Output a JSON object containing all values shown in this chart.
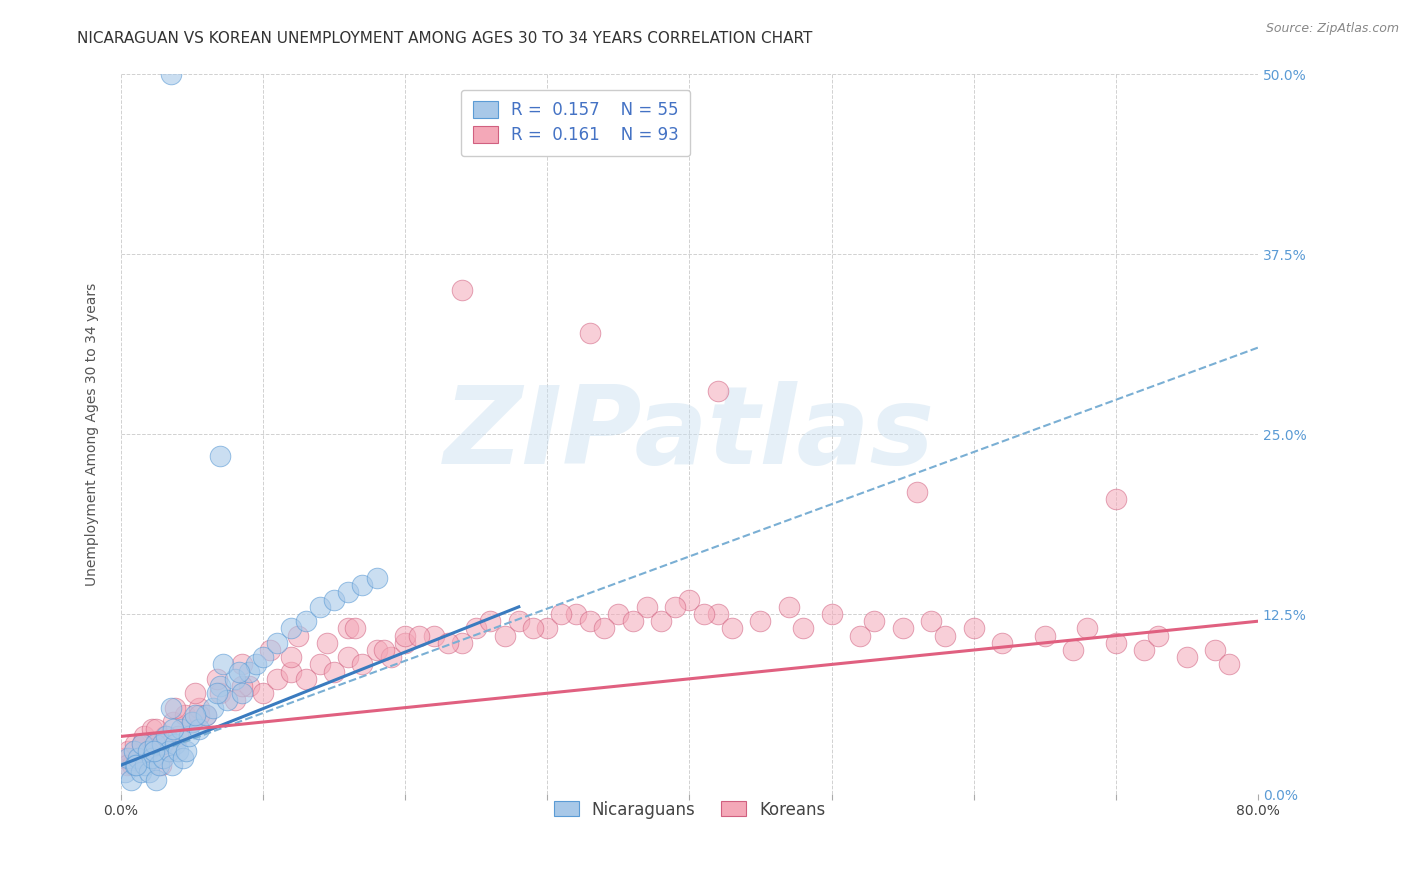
{
  "title": "NICARAGUAN VS KOREAN UNEMPLOYMENT AMONG AGES 30 TO 34 YEARS CORRELATION CHART",
  "source": "Source: ZipAtlas.com",
  "ylabel": "Unemployment Among Ages 30 to 34 years",
  "ytick_values": [
    0.0,
    12.5,
    25.0,
    37.5,
    50.0
  ],
  "xtick_values": [
    0.0,
    10.0,
    20.0,
    30.0,
    40.0,
    50.0,
    60.0,
    70.0,
    80.0
  ],
  "xlim": [
    0.0,
    80.0
  ],
  "ylim": [
    0.0,
    50.0
  ],
  "blue_scatter_color": "#a8c8e8",
  "blue_edge_color": "#5b9bd5",
  "pink_scatter_color": "#f4a8b8",
  "pink_edge_color": "#d06080",
  "blue_solid_color": "#3a7bbf",
  "pink_solid_color": "#e06080",
  "blue_dash_color": "#7aafd4",
  "watermark_text": "ZIPatlas",
  "title_fontsize": 11,
  "source_fontsize": 9,
  "axis_label_fontsize": 10,
  "tick_fontsize": 10,
  "legend_fontsize": 12,
  "nic_x": [
    0.3,
    0.5,
    0.7,
    0.9,
    1.0,
    1.2,
    1.4,
    1.5,
    1.7,
    1.9,
    2.0,
    2.2,
    2.4,
    2.5,
    2.7,
    2.9,
    3.0,
    3.2,
    3.4,
    3.6,
    3.8,
    4.0,
    4.2,
    4.4,
    4.6,
    4.8,
    5.0,
    5.5,
    6.0,
    6.5,
    7.0,
    7.5,
    8.0,
    8.5,
    9.0,
    9.5,
    10.0,
    11.0,
    12.0,
    13.0,
    14.0,
    15.0,
    16.0,
    17.0,
    18.0,
    3.5,
    7.2,
    1.1,
    2.3,
    3.7,
    5.2,
    6.8,
    8.3,
    3.5,
    7.0
  ],
  "nic_y": [
    1.5,
    2.5,
    1.0,
    3.0,
    2.0,
    2.5,
    1.5,
    3.5,
    2.0,
    3.0,
    1.5,
    2.5,
    3.5,
    1.0,
    2.0,
    3.5,
    2.5,
    4.0,
    3.0,
    2.0,
    3.5,
    3.0,
    4.5,
    2.5,
    3.0,
    4.0,
    5.0,
    4.5,
    5.5,
    6.0,
    7.5,
    6.5,
    8.0,
    7.0,
    8.5,
    9.0,
    9.5,
    10.5,
    11.5,
    12.0,
    13.0,
    13.5,
    14.0,
    14.5,
    15.0,
    6.0,
    9.0,
    2.0,
    3.0,
    4.5,
    5.5,
    7.0,
    8.5,
    50.0,
    23.5
  ],
  "kor_x": [
    0.2,
    0.5,
    0.8,
    1.0,
    1.3,
    1.6,
    1.9,
    2.2,
    2.5,
    2.8,
    3.1,
    3.4,
    3.7,
    4.0,
    4.5,
    5.0,
    5.5,
    6.0,
    7.0,
    8.0,
    9.0,
    10.0,
    11.0,
    12.0,
    13.0,
    14.0,
    15.0,
    16.0,
    17.0,
    18.0,
    19.0,
    20.0,
    22.0,
    24.0,
    25.0,
    27.0,
    28.0,
    30.0,
    32.0,
    33.0,
    35.0,
    37.0,
    38.0,
    40.0,
    42.0,
    43.0,
    45.0,
    47.0,
    48.0,
    50.0,
    52.0,
    53.0,
    55.0,
    57.0,
    58.0,
    60.0,
    62.0,
    65.0,
    67.0,
    68.0,
    70.0,
    72.0,
    73.0,
    75.0,
    77.0,
    78.0,
    3.0,
    5.5,
    8.5,
    12.0,
    16.0,
    20.0,
    0.4,
    1.5,
    2.5,
    3.8,
    5.2,
    6.8,
    8.5,
    10.5,
    12.5,
    14.5,
    16.5,
    18.5,
    21.0,
    23.0,
    26.0,
    29.0,
    31.0,
    34.0,
    36.0,
    39.0,
    41.0
  ],
  "kor_y": [
    2.5,
    3.0,
    2.0,
    3.5,
    2.5,
    4.0,
    3.0,
    4.5,
    3.5,
    2.0,
    4.0,
    3.0,
    5.0,
    4.0,
    5.5,
    5.0,
    6.0,
    5.5,
    7.0,
    6.5,
    7.5,
    7.0,
    8.0,
    8.5,
    8.0,
    9.0,
    8.5,
    9.5,
    9.0,
    10.0,
    9.5,
    10.5,
    11.0,
    10.5,
    11.5,
    11.0,
    12.0,
    11.5,
    12.5,
    12.0,
    12.5,
    13.0,
    12.0,
    13.5,
    12.5,
    11.5,
    12.0,
    13.0,
    11.5,
    12.5,
    11.0,
    12.0,
    11.5,
    12.0,
    11.0,
    11.5,
    10.5,
    11.0,
    10.0,
    11.5,
    10.5,
    10.0,
    11.0,
    9.5,
    10.0,
    9.0,
    3.5,
    5.5,
    7.5,
    9.5,
    11.5,
    11.0,
    2.0,
    3.5,
    4.5,
    6.0,
    7.0,
    8.0,
    9.0,
    10.0,
    11.0,
    10.5,
    11.5,
    10.0,
    11.0,
    10.5,
    12.0,
    11.5,
    12.5,
    11.5,
    12.0,
    13.0,
    12.5
  ],
  "kor_outlier_x": [
    24.0,
    33.0,
    42.0,
    56.0,
    70.0
  ],
  "kor_outlier_y": [
    35.0,
    32.0,
    28.0,
    21.0,
    20.5
  ],
  "blue_solid_x0": 0.0,
  "blue_solid_y0": 2.0,
  "blue_solid_x1": 28.0,
  "blue_solid_y1": 13.0,
  "blue_dash_x0": 0.0,
  "blue_dash_y0": 2.0,
  "blue_dash_x1": 80.0,
  "blue_dash_y1": 31.0,
  "pink_solid_x0": 0.0,
  "pink_solid_y0": 4.0,
  "pink_solid_x1": 80.0,
  "pink_solid_y1": 12.0
}
